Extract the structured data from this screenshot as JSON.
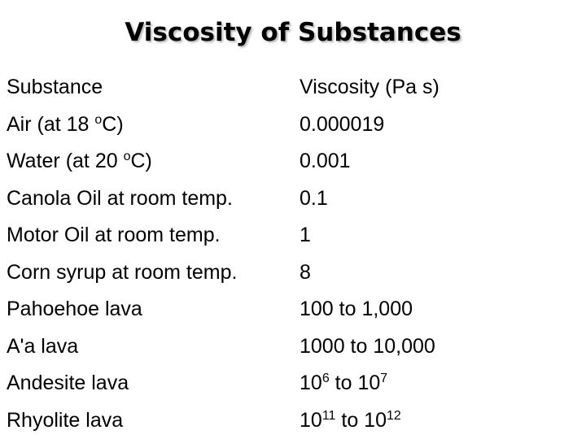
{
  "title": "Viscosity of Substances",
  "header": {
    "substance": "Substance",
    "viscosity": "Viscosity (Pa s)"
  },
  "rows": [
    {
      "substance": {
        "pre": "Air (at 18 ",
        "sup": "o",
        "post": "C)"
      },
      "viscosity": {
        "text": "0.000019"
      }
    },
    {
      "substance": {
        "pre": "Water (at 20 ",
        "sup": "o",
        "post": "C)"
      },
      "viscosity": {
        "text": "0.001"
      }
    },
    {
      "substance": {
        "text": "Canola Oil at room temp."
      },
      "viscosity": {
        "text": "0.1"
      }
    },
    {
      "substance": {
        "text": "Motor Oil at room temp."
      },
      "viscosity": {
        "text": "1"
      }
    },
    {
      "substance": {
        "text": "Corn syrup at room temp."
      },
      "viscosity": {
        "text": "8"
      }
    },
    {
      "substance": {
        "text": "Pahoehoe lava"
      },
      "viscosity": {
        "text": "100 to 1,000"
      }
    },
    {
      "substance": {
        "text": "A'a lava"
      },
      "viscosity": {
        "text": "1000 to 10,000"
      }
    },
    {
      "substance": {
        "text": "Andesite lava"
      },
      "viscosity": {
        "base1": "10",
        "exp1": "6",
        "mid": " to ",
        "base2": "10",
        "exp2": "7"
      }
    },
    {
      "substance": {
        "text": "Rhyolite lava"
      },
      "viscosity": {
        "base1": "10",
        "exp1": "11",
        "mid": " to ",
        "base2": "10",
        "exp2": "12"
      }
    }
  ]
}
